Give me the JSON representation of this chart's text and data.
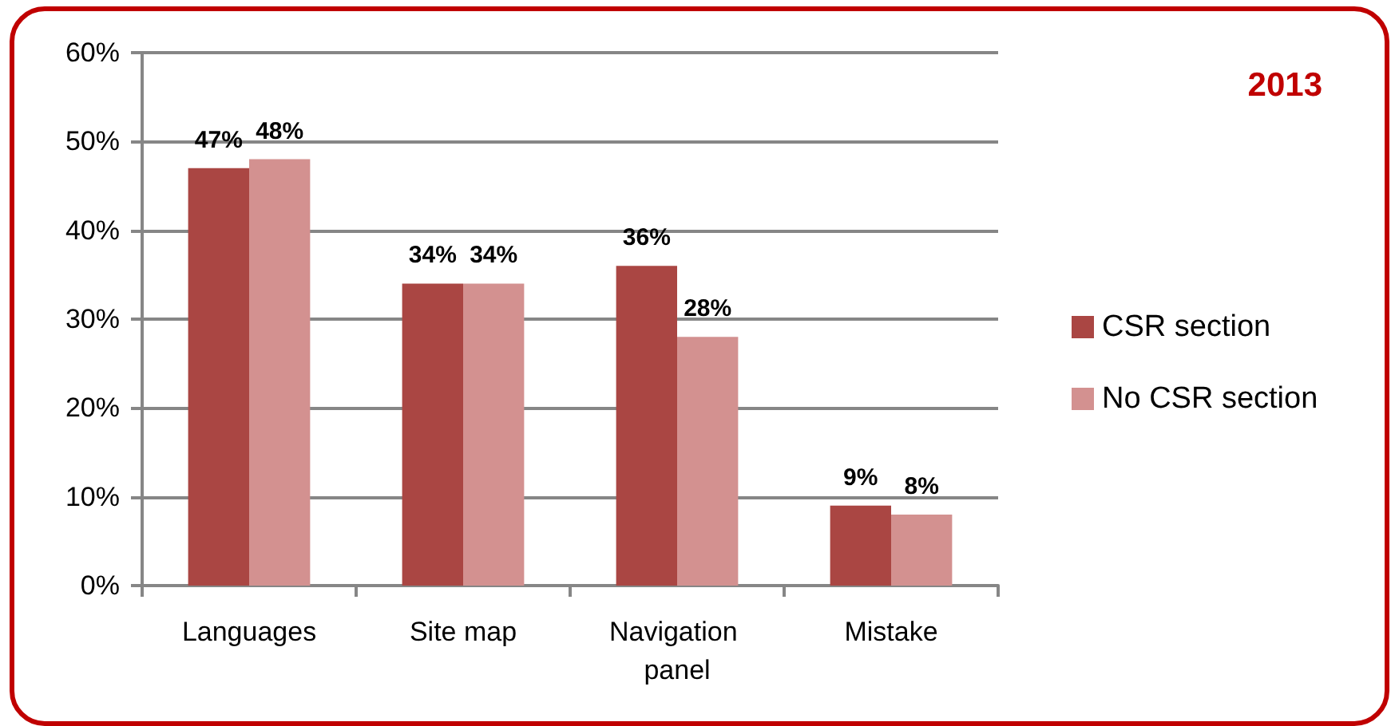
{
  "chart_data": {
    "type": "bar",
    "title": "2013",
    "categories": [
      "Languages",
      "Site map",
      "Navigation panel",
      "Mistake"
    ],
    "series": [
      {
        "name": "CSR section",
        "color": "#aa4643",
        "values": [
          47,
          34,
          36,
          9
        ],
        "value_labels": [
          "47%",
          "34%",
          "36%",
          "9%"
        ]
      },
      {
        "name": "No CSR section",
        "color": "#d39190",
        "values": [
          48,
          34,
          28,
          8
        ],
        "value_labels": [
          "48%",
          "34%",
          "28%",
          "8%"
        ]
      }
    ],
    "ylim": [
      0,
      60
    ],
    "yticks": [
      {
        "value": 0,
        "label": "0%"
      },
      {
        "value": 10,
        "label": "10%"
      },
      {
        "value": 20,
        "label": "20%"
      },
      {
        "value": 30,
        "label": "30%"
      },
      {
        "value": 40,
        "label": "40%"
      },
      {
        "value": 50,
        "label": "50%"
      },
      {
        "value": 60,
        "label": "60%"
      }
    ],
    "grid": "y",
    "legend": "right"
  }
}
